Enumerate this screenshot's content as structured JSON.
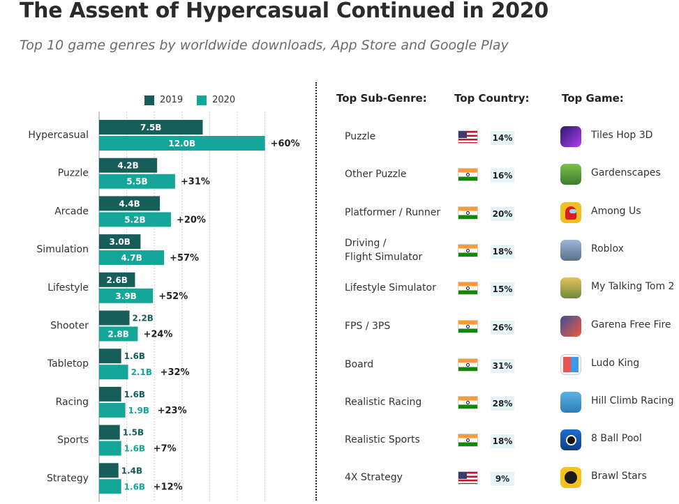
{
  "title": "The Assent of Hypercasual Continued in 2020",
  "subtitle": "Top 10 game genres by worldwide downloads, App Store and Google Play",
  "legend": {
    "y2019": "2019",
    "y2020": "2020"
  },
  "colors": {
    "y2019": "#175e5a",
    "y2020": "#14a799"
  },
  "chart_data": {
    "type": "bar",
    "orientation": "horizontal",
    "grid": true,
    "categories": [
      "Hypercasual",
      "Puzzle",
      "Arcade",
      "Simulation",
      "Lifestyle",
      "Shooter",
      "Tabletop",
      "Racing",
      "Sports",
      "Strategy"
    ],
    "series": [
      {
        "name": "2019",
        "values": [
          7.5,
          4.2,
          4.4,
          3.0,
          2.6,
          2.2,
          1.6,
          1.6,
          1.5,
          1.4
        ],
        "labels": [
          "7.5B",
          "4.2B",
          "4.4B",
          "3.0B",
          "2.6B",
          "2.2B",
          "1.6B",
          "1.6B",
          "1.5B",
          "1.4B"
        ]
      },
      {
        "name": "2020",
        "values": [
          12.0,
          5.5,
          5.2,
          4.7,
          3.9,
          2.8,
          2.1,
          1.9,
          1.6,
          1.6
        ],
        "labels": [
          "12.0B",
          "5.5B",
          "5.2B",
          "4.7B",
          "3.9B",
          "2.8B",
          "2.1B",
          "1.9B",
          "1.6B",
          "1.6B"
        ]
      }
    ],
    "growth": [
      "+60%",
      "+31%",
      "+20%",
      "+57%",
      "+52%",
      "+24%",
      "+32%",
      "+23%",
      "+7%",
      "+12%"
    ]
  },
  "table": {
    "headers": {
      "sub_genre": "Top Sub-Genre:",
      "country": "Top Country:",
      "game": "Top Game:"
    },
    "rows": [
      {
        "sub_genre": "Puzzle",
        "country": "us-flag",
        "share": "14%",
        "game": "Tiles Hop 3D"
      },
      {
        "sub_genre": "Other Puzzle",
        "country": "india-flag",
        "share": "16%",
        "game": "Gardenscapes"
      },
      {
        "sub_genre": "Platformer / Runner",
        "country": "india-flag",
        "share": "20%",
        "game": "Among Us"
      },
      {
        "sub_genre": "Driving /\nFlight Simulator",
        "country": "india-flag",
        "share": "18%",
        "game": "Roblox"
      },
      {
        "sub_genre": "Lifestyle Simulator",
        "country": "india-flag",
        "share": "15%",
        "game": "My Talking Tom 2"
      },
      {
        "sub_genre": "FPS / 3PS",
        "country": "india-flag",
        "share": "26%",
        "game": "Garena Free Fire"
      },
      {
        "sub_genre": "Board",
        "country": "india-flag",
        "share": "31%",
        "game": "Ludo King"
      },
      {
        "sub_genre": "Realistic Racing",
        "country": "india-flag",
        "share": "28%",
        "game": "Hill Climb Racing"
      },
      {
        "sub_genre": "Realistic Sports",
        "country": "india-flag",
        "share": "18%",
        "game": "8 Ball Pool"
      },
      {
        "sub_genre": "4X Strategy",
        "country": "us-flag",
        "share": "9%",
        "game": "Brawl Stars"
      }
    ],
    "game_icons": [
      "tiles-hop-icon",
      "gardenscapes-icon",
      "among-us-icon",
      "roblox-icon",
      "talking-tom-icon",
      "free-fire-icon",
      "ludo-king-icon",
      "hill-climb-icon",
      "8-ball-pool-icon",
      "brawl-stars-icon"
    ]
  }
}
